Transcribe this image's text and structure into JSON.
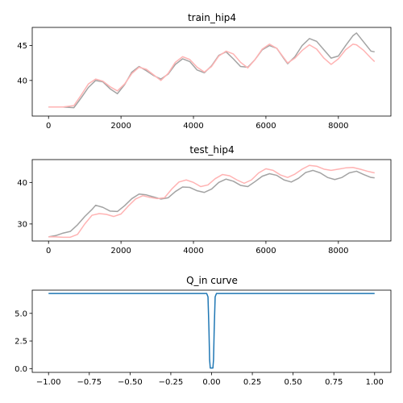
{
  "chart_data": [
    {
      "type": "line",
      "title": "train_hip4",
      "xlabel": "",
      "ylabel": "",
      "xlim": [
        -450,
        9450
      ],
      "ylim": [
        34.9,
        47.6
      ],
      "xticks": [
        0,
        2000,
        4000,
        6000,
        8000
      ],
      "xtick_labels": [
        "0",
        "2000",
        "4000",
        "6000",
        "8000"
      ],
      "yticks": [
        40,
        45
      ],
      "ytick_labels": [
        "40",
        "45"
      ],
      "series": [
        {
          "color": "#a3a3a3",
          "points": [
            [
              0,
              36.2
            ],
            [
              400,
              36.2
            ],
            [
              700,
              36.1
            ],
            [
              900,
              37.5
            ],
            [
              1100,
              39.0
            ],
            [
              1300,
              40.0
            ],
            [
              1500,
              39.8
            ],
            [
              1700,
              38.8
            ],
            [
              1900,
              38.1
            ],
            [
              2100,
              39.4
            ],
            [
              2300,
              41.2
            ],
            [
              2500,
              42.0
            ],
            [
              2700,
              41.4
            ],
            [
              2900,
              40.7
            ],
            [
              3100,
              40.2
            ],
            [
              3300,
              40.9
            ],
            [
              3500,
              42.3
            ],
            [
              3700,
              43.1
            ],
            [
              3900,
              42.7
            ],
            [
              4100,
              41.5
            ],
            [
              4300,
              41.1
            ],
            [
              4500,
              42.1
            ],
            [
              4700,
              43.6
            ],
            [
              4900,
              44.1
            ],
            [
              5100,
              43.1
            ],
            [
              5300,
              42.0
            ],
            [
              5500,
              41.9
            ],
            [
              5700,
              43.0
            ],
            [
              5900,
              44.4
            ],
            [
              6100,
              45.0
            ],
            [
              6300,
              44.6
            ],
            [
              6500,
              43.1
            ],
            [
              6600,
              42.4
            ],
            [
              6800,
              43.4
            ],
            [
              7000,
              45.0
            ],
            [
              7200,
              46.0
            ],
            [
              7400,
              45.6
            ],
            [
              7600,
              44.4
            ],
            [
              7800,
              43.2
            ],
            [
              8000,
              43.5
            ],
            [
              8200,
              45.0
            ],
            [
              8400,
              46.4
            ],
            [
              8500,
              46.8
            ],
            [
              8700,
              45.5
            ],
            [
              8900,
              44.2
            ],
            [
              9000,
              44.1
            ]
          ]
        },
        {
          "color": "#ffb3b3",
          "points": [
            [
              0,
              36.2
            ],
            [
              400,
              36.2
            ],
            [
              700,
              36.4
            ],
            [
              900,
              37.9
            ],
            [
              1100,
              39.5
            ],
            [
              1300,
              40.2
            ],
            [
              1500,
              39.9
            ],
            [
              1700,
              39.1
            ],
            [
              1900,
              38.5
            ],
            [
              2100,
              39.5
            ],
            [
              2300,
              41.0
            ],
            [
              2500,
              41.9
            ],
            [
              2700,
              41.6
            ],
            [
              2900,
              40.8
            ],
            [
              3100,
              40.0
            ],
            [
              3300,
              41.0
            ],
            [
              3500,
              42.6
            ],
            [
              3700,
              43.4
            ],
            [
              3900,
              43.0
            ],
            [
              4100,
              41.9
            ],
            [
              4300,
              41.2
            ],
            [
              4500,
              42.0
            ],
            [
              4700,
              43.5
            ],
            [
              4900,
              44.2
            ],
            [
              5100,
              43.8
            ],
            [
              5300,
              42.6
            ],
            [
              5500,
              41.8
            ],
            [
              5700,
              43.0
            ],
            [
              5900,
              44.5
            ],
            [
              6100,
              45.2
            ],
            [
              6300,
              44.6
            ],
            [
              6500,
              43.2
            ],
            [
              6600,
              42.5
            ],
            [
              6800,
              43.2
            ],
            [
              7000,
              44.3
            ],
            [
              7200,
              45.1
            ],
            [
              7400,
              44.5
            ],
            [
              7600,
              43.2
            ],
            [
              7800,
              42.3
            ],
            [
              8000,
              43.1
            ],
            [
              8200,
              44.4
            ],
            [
              8400,
              45.2
            ],
            [
              8500,
              45.1
            ],
            [
              8700,
              44.3
            ],
            [
              8900,
              43.2
            ],
            [
              9000,
              42.7
            ]
          ]
        }
      ]
    },
    {
      "type": "line",
      "title": "test_hip4",
      "xlabel": "",
      "ylabel": "",
      "xlim": [
        -450,
        9450
      ],
      "ylim": [
        25.9,
        45.5
      ],
      "xticks": [
        0,
        2000,
        4000,
        6000,
        8000
      ],
      "xtick_labels": [
        "0",
        "2000",
        "4000",
        "6000",
        "8000"
      ],
      "yticks": [
        30,
        40
      ],
      "ytick_labels": [
        "30",
        "40"
      ],
      "series": [
        {
          "color": "#a3a3a3",
          "points": [
            [
              0,
              26.9
            ],
            [
              200,
              27.2
            ],
            [
              400,
              27.8
            ],
            [
              600,
              28.2
            ],
            [
              800,
              29.8
            ],
            [
              1000,
              31.8
            ],
            [
              1200,
              33.5
            ],
            [
              1300,
              34.5
            ],
            [
              1500,
              34.0
            ],
            [
              1700,
              33.1
            ],
            [
              1900,
              33.0
            ],
            [
              2100,
              34.4
            ],
            [
              2300,
              36.1
            ],
            [
              2500,
              37.2
            ],
            [
              2700,
              37.0
            ],
            [
              2900,
              36.5
            ],
            [
              3100,
              36.0
            ],
            [
              3300,
              36.3
            ],
            [
              3500,
              37.8
            ],
            [
              3700,
              38.9
            ],
            [
              3900,
              38.8
            ],
            [
              4100,
              38.0
            ],
            [
              4300,
              37.6
            ],
            [
              4500,
              38.4
            ],
            [
              4700,
              40.0
            ],
            [
              4900,
              40.8
            ],
            [
              5100,
              40.3
            ],
            [
              5300,
              39.3
            ],
            [
              5500,
              39.0
            ],
            [
              5700,
              40.2
            ],
            [
              5900,
              41.5
            ],
            [
              6100,
              42.1
            ],
            [
              6300,
              41.7
            ],
            [
              6500,
              40.6
            ],
            [
              6700,
              40.1
            ],
            [
              6900,
              41.0
            ],
            [
              7100,
              42.4
            ],
            [
              7300,
              42.9
            ],
            [
              7500,
              42.3
            ],
            [
              7700,
              41.2
            ],
            [
              7900,
              40.7
            ],
            [
              8100,
              41.2
            ],
            [
              8300,
              42.3
            ],
            [
              8500,
              42.7
            ],
            [
              8700,
              41.9
            ],
            [
              8900,
              41.2
            ],
            [
              9000,
              41.1
            ]
          ]
        },
        {
          "color": "#ffb3b3",
          "points": [
            [
              0,
              26.9
            ],
            [
              200,
              26.9
            ],
            [
              400,
              26.8
            ],
            [
              600,
              26.8
            ],
            [
              800,
              27.5
            ],
            [
              1000,
              30.0
            ],
            [
              1200,
              32.1
            ],
            [
              1400,
              32.5
            ],
            [
              1600,
              32.3
            ],
            [
              1800,
              31.8
            ],
            [
              2000,
              32.4
            ],
            [
              2200,
              34.3
            ],
            [
              2400,
              36.0
            ],
            [
              2600,
              36.8
            ],
            [
              2800,
              36.4
            ],
            [
              3000,
              36.1
            ],
            [
              3200,
              36.3
            ],
            [
              3400,
              38.4
            ],
            [
              3600,
              40.1
            ],
            [
              3800,
              40.6
            ],
            [
              4000,
              40.0
            ],
            [
              4200,
              39.0
            ],
            [
              4400,
              39.4
            ],
            [
              4600,
              40.9
            ],
            [
              4800,
              41.9
            ],
            [
              5000,
              41.6
            ],
            [
              5200,
              40.6
            ],
            [
              5400,
              39.8
            ],
            [
              5600,
              40.6
            ],
            [
              5800,
              42.3
            ],
            [
              6000,
              43.3
            ],
            [
              6200,
              42.9
            ],
            [
              6400,
              41.8
            ],
            [
              6600,
              41.2
            ],
            [
              6800,
              42.0
            ],
            [
              7000,
              43.2
            ],
            [
              7200,
              44.1
            ],
            [
              7400,
              43.9
            ],
            [
              7600,
              43.2
            ],
            [
              7800,
              42.9
            ],
            [
              8000,
              43.2
            ],
            [
              8200,
              43.5
            ],
            [
              8400,
              43.6
            ],
            [
              8600,
              43.2
            ],
            [
              8800,
              42.7
            ],
            [
              9000,
              42.3
            ]
          ]
        }
      ]
    },
    {
      "type": "line",
      "title": "Q_in curve",
      "xlabel": "",
      "ylabel": "",
      "xlim": [
        -1.1,
        1.1
      ],
      "ylim": [
        -0.34,
        7.1
      ],
      "xticks": [
        -1.0,
        -0.75,
        -0.5,
        -0.25,
        0.0,
        0.25,
        0.5,
        0.75,
        1.0
      ],
      "xtick_labels": [
        "−1.00",
        "−0.75",
        "−0.50",
        "−0.25",
        "0.00",
        "0.25",
        "0.50",
        "0.75",
        "1.00"
      ],
      "yticks": [
        0.0,
        2.5,
        5.0
      ],
      "ytick_labels": [
        "0.0",
        "2.5",
        "5.0"
      ],
      "series": [
        {
          "color": "#1f77b4",
          "points": [
            [
              -1.0,
              6.8
            ],
            [
              -0.03,
              6.8
            ],
            [
              -0.022,
              6.5
            ],
            [
              -0.016,
              3.5
            ],
            [
              -0.012,
              0.8
            ],
            [
              -0.008,
              0.05
            ],
            [
              0.008,
              0.05
            ],
            [
              0.012,
              0.8
            ],
            [
              0.016,
              3.5
            ],
            [
              0.022,
              6.5
            ],
            [
              0.03,
              6.8
            ],
            [
              1.0,
              6.8
            ]
          ]
        }
      ]
    }
  ]
}
